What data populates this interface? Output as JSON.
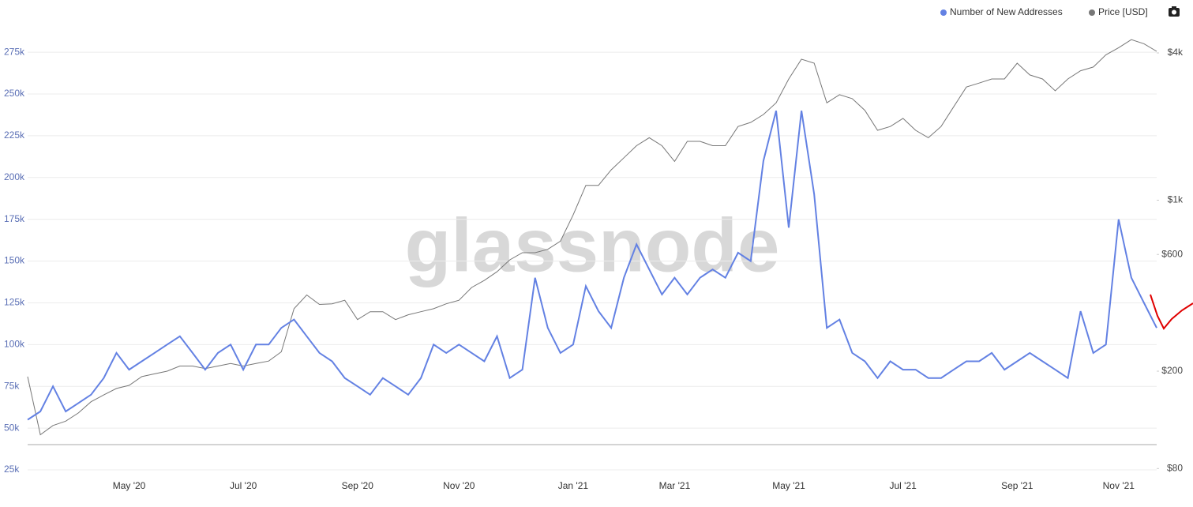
{
  "chart_data": {
    "type": "line",
    "watermark": "glassnode",
    "categories": [
      null,
      null,
      null,
      null,
      null,
      null,
      null,
      null,
      "May '20",
      null,
      null,
      null,
      null,
      null,
      null,
      null,
      null,
      "Jul '20",
      null,
      null,
      null,
      null,
      null,
      null,
      null,
      null,
      "Sep '20",
      null,
      null,
      null,
      null,
      null,
      null,
      null,
      "Nov '20",
      null,
      null,
      null,
      null,
      null,
      null,
      null,
      null,
      "Jan '21",
      null,
      null,
      null,
      null,
      null,
      null,
      null,
      "Mar '21",
      null,
      null,
      null,
      null,
      null,
      null,
      null,
      null,
      "May '21",
      null,
      null,
      null,
      null,
      null,
      null,
      null,
      null,
      "Jul '21",
      null,
      null,
      null,
      null,
      null,
      null,
      null,
      null,
      "Sep '21",
      null,
      null,
      null,
      null,
      null,
      null,
      null,
      "Nov '21",
      null,
      null,
      null
    ],
    "series": [
      {
        "name": "Number of New Addresses",
        "color": "#6381e3",
        "axis": "y",
        "values": [
          55000,
          60000,
          75000,
          60000,
          65000,
          70000,
          80000,
          95000,
          85000,
          90000,
          95000,
          100000,
          105000,
          95000,
          85000,
          95000,
          100000,
          85000,
          100000,
          100000,
          110000,
          115000,
          105000,
          95000,
          90000,
          80000,
          75000,
          70000,
          80000,
          75000,
          70000,
          80000,
          100000,
          95000,
          100000,
          95000,
          90000,
          105000,
          80000,
          85000,
          140000,
          110000,
          95000,
          100000,
          135000,
          120000,
          110000,
          140000,
          160000,
          145000,
          130000,
          140000,
          130000,
          140000,
          145000,
          140000,
          155000,
          150000,
          210000,
          240000,
          170000,
          240000,
          190000,
          110000,
          115000,
          95000,
          90000,
          80000,
          90000,
          85000,
          85000,
          80000,
          80000,
          85000,
          90000,
          90000,
          95000,
          85000,
          90000,
          95000,
          90000,
          85000,
          80000,
          120000,
          95000,
          100000,
          175000,
          140000,
          125000,
          110000
        ]
      },
      {
        "name": "Price [USD]",
        "color": "#777777",
        "axis": "y2",
        "values": [
          190,
          110,
          120,
          125,
          135,
          150,
          160,
          170,
          175,
          190,
          195,
          200,
          210,
          210,
          205,
          210,
          215,
          210,
          215,
          220,
          240,
          360,
          410,
          375,
          377,
          390,
          325,
          350,
          350,
          325,
          340,
          350,
          360,
          377,
          390,
          440,
          470,
          510,
          570,
          610,
          610,
          630,
          680,
          870,
          1150,
          1150,
          1330,
          1490,
          1670,
          1800,
          1670,
          1440,
          1740,
          1740,
          1670,
          1670,
          2000,
          2080,
          2240,
          2500,
          3130,
          3770,
          3630,
          2500,
          2700,
          2600,
          2330,
          1930,
          2000,
          2160,
          1930,
          1800,
          2000,
          2410,
          2900,
          3010,
          3130,
          3130,
          3630,
          3250,
          3130,
          2800,
          3130,
          3380,
          3500,
          3930,
          4200,
          4530,
          4360,
          4060
        ]
      }
    ],
    "ylim": [
      25000,
      285000
    ],
    "yticks": [
      {
        "value": 25000,
        "label": "25k"
      },
      {
        "value": 50000,
        "label": "50k"
      },
      {
        "value": 75000,
        "label": "75k"
      },
      {
        "value": 100000,
        "label": "100k"
      },
      {
        "value": 125000,
        "label": "125k"
      },
      {
        "value": 150000,
        "label": "150k"
      },
      {
        "value": 175000,
        "label": "175k"
      },
      {
        "value": 200000,
        "label": "200k"
      },
      {
        "value": 225000,
        "label": "225k"
      },
      {
        "value": 250000,
        "label": "250k"
      },
      {
        "value": 275000,
        "label": "275k"
      }
    ],
    "y2lim": [
      79,
      4710
    ],
    "y2log": true,
    "y2ticks": [
      {
        "value": 80,
        "label": "$80"
      },
      {
        "value": 200,
        "label": "$200"
      },
      {
        "value": 600,
        "label": "$600"
      },
      {
        "value": 1000,
        "label": "$1k"
      },
      {
        "value": 4000,
        "label": "$4k"
      }
    ],
    "grid": true
  }
}
